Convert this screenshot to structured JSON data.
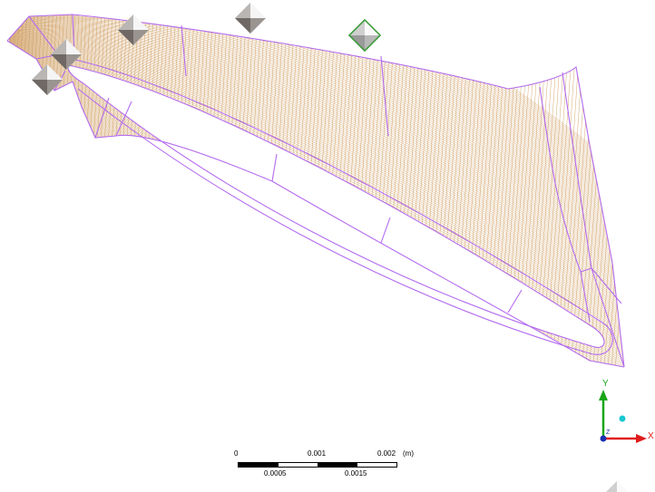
{
  "viewport": {
    "background": "#ffffff"
  },
  "colors": {
    "mesh_line": "#c9924e",
    "edge_line": "#b46bf0",
    "handle_light": "#f4f4f4",
    "handle_dark": "#7a7470",
    "handle_green": "#3a9a3a",
    "axis_x": "#e01b1b",
    "axis_y": "#1aa51a",
    "axis_z_dot": "#19c7d0"
  },
  "scale_bar": {
    "top_labels": [
      "0",
      "0.001",
      "0.002",
      "(m)"
    ],
    "bottom_labels": [
      "0.0005",
      "0.0015"
    ]
  },
  "triad": {
    "x_label": "X",
    "y_label": "Y",
    "z_label": "Z"
  },
  "handles": [
    {
      "name": "gray-diamond-handle-1",
      "icon": "diamond-handle-icon",
      "color": "gray"
    },
    {
      "name": "gray-diamond-handle-2",
      "icon": "diamond-handle-icon",
      "color": "gray"
    },
    {
      "name": "gray-diamond-handle-3",
      "icon": "diamond-handle-icon",
      "color": "gray"
    },
    {
      "name": "gray-diamond-handle-4",
      "icon": "diamond-handle-icon",
      "color": "gray"
    },
    {
      "name": "green-diamond-handle",
      "icon": "diamond-handle-icon",
      "color": "green"
    },
    {
      "name": "corner-diamond-handle",
      "icon": "diamond-handle-icon",
      "color": "gray"
    }
  ]
}
